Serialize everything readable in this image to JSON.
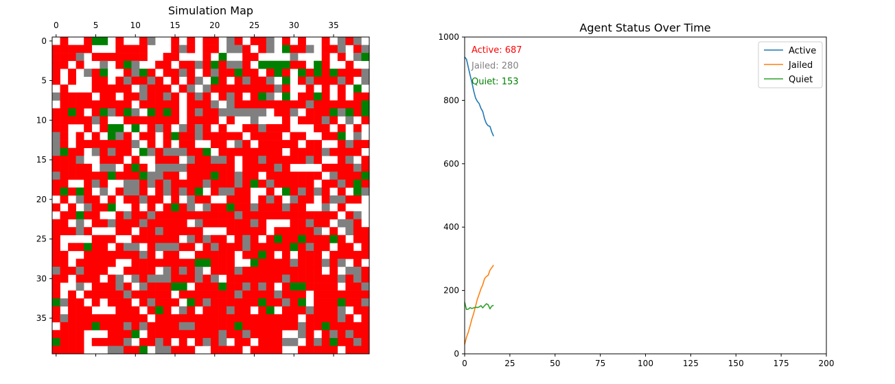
{
  "colors": {
    "active": "#ff0000",
    "jailed": "#808080",
    "quiet": "#008000",
    "empty": "#ffffff",
    "line_active": "#1f77b4",
    "line_jailed": "#ff7f0e",
    "line_quiet": "#2ca02c",
    "label_jailed": "#808080"
  },
  "chart_data": [
    {
      "type": "heatmap",
      "title": "Simulation Map",
      "grid_size": [
        40,
        40
      ],
      "x_ticks": [
        0,
        5,
        10,
        15,
        20,
        25,
        30,
        35
      ],
      "y_ticks": [
        0,
        5,
        10,
        15,
        20,
        25,
        30,
        35
      ],
      "x_tick_position": "top",
      "legend": "none",
      "categories": [
        "empty",
        "active",
        "jailed",
        "quiet"
      ],
      "cell_codes": "0 = empty (white), 1 = active (red), 2 = jailed (gray), 3 = quiet (green)",
      "rows": [
        "0100133010012001010110210112010100102120",
        "1111100011110001210110221012031120112012",
        "1112011111110011000103001100002000101023",
        "1101002013200110112131221033331103100100",
        "1010213001231011210121131101310313131112",
        "1010011012112101012031012112030121112102",
        "0100011111021110120211111111210010101030",
        "2111101101121121012101210132030113101011",
        "0111111111011111011120211111111121111113",
        "1131013213203131012112222220112011132313",
        "1111121001111111011110100200010111210201",
        "1100101330301210212101001121110001101010",
        "2101010321011013112111110111101100113020",
        "2101111111201010110011021011111011001211",
        "2311021211032122211301111111101111211110",
        "1112001110100111021122101121111121001201",
        "1111102201310222211111101111210000111121",
        "2111111311132211011131121101111111021113",
        "1100121002212121111211121312111110112131",
        "1313102012210121213012211001031212101032",
        "0102110101121101021100111012102110122110",
        "1010211300101013120211311211121100201000",
        "0113110012112111111111121111111111110120",
        "1102011211121111102111111210001121102210",
        "1112100011011211111000111110111112010211",
        "1000011100111111021211012101311311131011",
        "1011311012201222110121112111113121101101",
        "1100111111121011001111101131010111011111",
        "1101111100111111113311100311112111212010",
        "2112111001111021212011121111111111010221",
        "1101110120212221112120111111121111112121",
        "1002011121021113301113112121013311110112",
        "1010111112111110111111121111211101111111",
        "3211010111012111031211111131121301113112",
        "1011100011101310210111211013011121112011",
        "1211111111110111111111111111111011112101",
        "0111131112121111221111131111111211311111",
        "1111000111301111111112112111100210121211",
        "3111011112011210101212011011122012131121",
        "1111000221130221110011110111100111110111"
      ]
    },
    {
      "type": "line",
      "title": "Agent Status Over Time",
      "xlim": [
        0,
        200
      ],
      "ylim": [
        0,
        1000
      ],
      "x_ticks": [
        0,
        25,
        50,
        75,
        100,
        125,
        150,
        175,
        200
      ],
      "y_ticks": [
        0,
        200,
        400,
        600,
        800,
        1000
      ],
      "legend_position": "top-right",
      "x": [
        0,
        1,
        2,
        3,
        4,
        5,
        6,
        7,
        8,
        9,
        10,
        11,
        12,
        13,
        14,
        15,
        16
      ],
      "series": [
        {
          "name": "Active",
          "color_key": "line_active",
          "values": [
            937,
            930,
            905,
            880,
            857,
            830,
            808,
            797,
            790,
            775,
            765,
            742,
            727,
            720,
            718,
            700,
            687
          ]
        },
        {
          "name": "Jailed",
          "color_key": "line_jailed",
          "values": [
            30,
            52,
            68,
            88,
            110,
            128,
            150,
            172,
            188,
            205,
            218,
            237,
            244,
            248,
            264,
            272,
            280
          ]
        },
        {
          "name": "Quiet",
          "color_key": "line_quiet",
          "values": [
            163,
            140,
            141,
            146,
            143,
            145,
            147,
            146,
            148,
            152,
            145,
            152,
            158,
            155,
            142,
            151,
            153
          ]
        }
      ],
      "annotations": [
        {
          "text": "Active: 687",
          "color_key": "active"
        },
        {
          "text": "Jailed: 280",
          "color_key": "label_jailed"
        },
        {
          "text": "Quiet: 153",
          "color_key": "quiet"
        }
      ]
    }
  ]
}
